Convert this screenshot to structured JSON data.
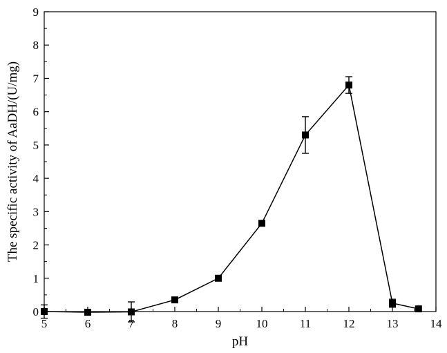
{
  "chart_data": {
    "type": "line",
    "title": "",
    "xlabel": "pH",
    "ylabel": "The specific activity of AaDH/(U/mg)",
    "xlim": [
      5,
      14
    ],
    "ylim": [
      0,
      9
    ],
    "xticks": [
      "5",
      "6",
      "7",
      "8",
      "9",
      "10",
      "11",
      "12",
      "13",
      "14"
    ],
    "yticks": [
      "0",
      "1",
      "2",
      "3",
      "4",
      "5",
      "6",
      "7",
      "8",
      "9"
    ],
    "grid": false,
    "legend": "none",
    "series": [
      {
        "marker": "square",
        "color": "#000000",
        "points": [
          {
            "x": 5,
            "y": 0.0,
            "err": 0.2
          },
          {
            "x": 6,
            "y": -0.02,
            "err": 0
          },
          {
            "x": 7,
            "y": -0.01,
            "err": 0.3
          },
          {
            "x": 8,
            "y": 0.35,
            "err": 0
          },
          {
            "x": 9,
            "y": 1.0,
            "err": 0
          },
          {
            "x": 10,
            "y": 2.65,
            "err": 0
          },
          {
            "x": 11,
            "y": 5.3,
            "err": 0.55
          },
          {
            "x": 12,
            "y": 6.8,
            "err": 0.25
          },
          {
            "x": 13,
            "y": 0.25,
            "err": 0.12
          },
          {
            "x": 13.6,
            "y": 0.08,
            "err": 0
          }
        ]
      }
    ]
  }
}
